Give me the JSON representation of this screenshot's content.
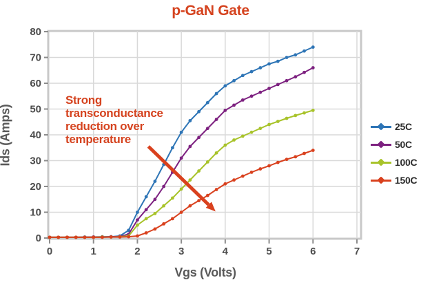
{
  "chart_data": {
    "type": "line",
    "title": "p-GaN Gate",
    "xlabel": "Vgs (Volts)",
    "ylabel": "Ids (Amps)",
    "xlim": [
      0,
      7
    ],
    "ylim": [
      0,
      80
    ],
    "xticks": [
      0,
      1,
      2,
      3,
      4,
      5,
      6,
      7
    ],
    "yticks": [
      0,
      10,
      20,
      30,
      40,
      50,
      60,
      70,
      80
    ],
    "grid": true,
    "legend_position": "right",
    "x": [
      0,
      0.2,
      0.4,
      0.6,
      0.8,
      1.0,
      1.2,
      1.4,
      1.6,
      1.8,
      2.0,
      2.2,
      2.4,
      2.6,
      2.8,
      3.0,
      3.2,
      3.4,
      3.6,
      3.8,
      4.0,
      4.2,
      4.4,
      4.6,
      4.8,
      5.0,
      5.2,
      5.4,
      5.6,
      5.8,
      6.0
    ],
    "series": [
      {
        "name": "25C",
        "color": "#2e75b6",
        "values": [
          0.3,
          0.3,
          0.3,
          0.3,
          0.4,
          0.4,
          0.5,
          0.5,
          0.8,
          3,
          10,
          16,
          22,
          28.5,
          35,
          41,
          45.5,
          49,
          52.5,
          56,
          59,
          61,
          63,
          64.5,
          66,
          67.5,
          68.5,
          70,
          71,
          72.5,
          74
        ]
      },
      {
        "name": "50C",
        "color": "#7d2180",
        "values": [
          0.3,
          0.3,
          0.3,
          0.3,
          0.3,
          0.4,
          0.4,
          0.5,
          0.6,
          1.5,
          7,
          11,
          15,
          20,
          25.5,
          31,
          35.5,
          39,
          42.5,
          46,
          49.5,
          51.5,
          53.5,
          55,
          56.5,
          58,
          59.5,
          61,
          62.5,
          64.2,
          66
        ]
      },
      {
        "name": "100C",
        "color": "#a8c32a",
        "values": [
          0.3,
          0.3,
          0.3,
          0.3,
          0.3,
          0.3,
          0.4,
          0.4,
          0.5,
          0.8,
          5,
          7.5,
          9.5,
          12.5,
          15.5,
          19,
          22.5,
          26,
          29.5,
          33,
          36,
          38,
          39.5,
          41,
          42.5,
          44,
          45.2,
          46.4,
          47.5,
          48.5,
          49.5
        ]
      },
      {
        "name": "150C",
        "color": "#d9411e",
        "values": [
          0.3,
          0.3,
          0.3,
          0.3,
          0.3,
          0.3,
          0.3,
          0.4,
          0.4,
          0.5,
          0.8,
          2,
          3.5,
          5.5,
          7.5,
          10,
          12.5,
          14.5,
          16.5,
          18.8,
          21,
          22.5,
          24,
          25.5,
          26.8,
          28,
          29.3,
          30.5,
          31.5,
          32.8,
          34
        ]
      }
    ],
    "annotation": {
      "lines": [
        "Strong",
        "transconductance",
        "reduction over",
        "temperature"
      ],
      "arrow_from": [
        2.25,
        35.5
      ],
      "arrow_to": [
        3.78,
        10.3
      ]
    },
    "colors": {
      "title": "#d5431f",
      "annotation": "#d5431f",
      "arrow": "#d9411e",
      "grid": "#d9d9d9",
      "frame": "#c8c8c8",
      "tick": "#8c8c8c",
      "tick_label": "#4d4d4d",
      "axis_title": "#595959",
      "legend_text": "#2b2b2b",
      "plot_background": "#ffffff"
    }
  }
}
